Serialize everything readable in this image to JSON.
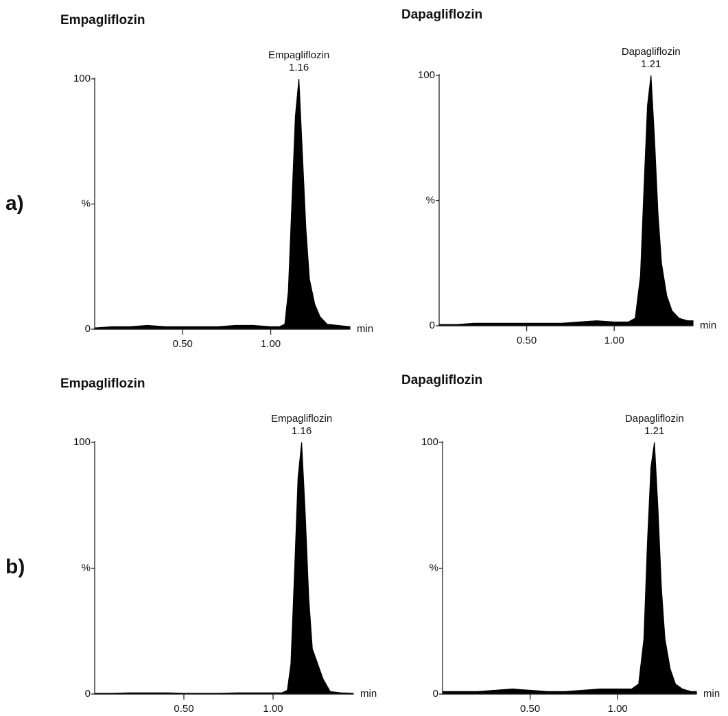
{
  "row_labels": [
    "a)",
    "b)"
  ],
  "chart_data": [
    {
      "type": "area",
      "title": "Empagliflozin",
      "x_label": "min",
      "color": "#000000",
      "peak": {
        "name": "Empagliflozin",
        "x": 1.16
      },
      "x": [
        0,
        0.1,
        0.2,
        0.3,
        0.4,
        0.5,
        0.6,
        0.7,
        0.8,
        0.9,
        1.0,
        1.05,
        1.08,
        1.1,
        1.12,
        1.14,
        1.16,
        1.18,
        1.2,
        1.22,
        1.25,
        1.28,
        1.32,
        1.38,
        1.45
      ],
      "values": [
        0.5,
        1,
        1,
        1.5,
        1,
        1,
        1,
        1,
        1.5,
        1.5,
        1,
        1,
        2,
        15,
        50,
        85,
        100,
        70,
        40,
        20,
        10,
        5,
        2,
        1.5,
        1
      ],
      "xlim": [
        0,
        1.45
      ],
      "ylim": [
        0,
        100
      ],
      "xticks": [
        {
          "value": 0.5,
          "label": "0.50"
        },
        {
          "value": 1.0,
          "label": "1.00"
        }
      ],
      "yticks": [
        0,
        {
          "value": 50,
          "label": "%"
        },
        100
      ]
    },
    {
      "type": "area",
      "title": "Dapagliflozin",
      "x_label": "min",
      "color": "#000000",
      "peak": {
        "name": "Dapagliflozin",
        "x": 1.21
      },
      "x": [
        0,
        0.1,
        0.2,
        0.3,
        0.4,
        0.5,
        0.6,
        0.7,
        0.8,
        0.9,
        1.0,
        1.08,
        1.12,
        1.15,
        1.17,
        1.19,
        1.21,
        1.23,
        1.25,
        1.27,
        1.3,
        1.33,
        1.37,
        1.42,
        1.45
      ],
      "values": [
        0.5,
        0.5,
        1,
        1,
        1,
        1,
        1,
        1,
        1.5,
        2,
        1.5,
        1.5,
        3,
        20,
        55,
        88,
        100,
        75,
        45,
        25,
        12,
        6,
        3,
        2,
        2
      ],
      "xlim": [
        0,
        1.45
      ],
      "ylim": [
        0,
        100
      ],
      "xticks": [
        {
          "value": 0.5,
          "label": "0.50"
        },
        {
          "value": 1.0,
          "label": "1.00"
        }
      ],
      "yticks": [
        0,
        {
          "value": 50,
          "label": "%"
        },
        100
      ]
    },
    {
      "type": "area",
      "title": "Empagliflozin",
      "x_label": "min",
      "color": "#000000",
      "peak": {
        "name": "Empagliflozin",
        "x": 1.16
      },
      "x": [
        0,
        0.1,
        0.2,
        0.3,
        0.4,
        0.5,
        0.6,
        0.7,
        0.8,
        0.9,
        1.0,
        1.05,
        1.08,
        1.1,
        1.12,
        1.14,
        1.16,
        1.18,
        1.2,
        1.22,
        1.25,
        1.28,
        1.32,
        1.38,
        1.45
      ],
      "values": [
        0.3,
        0.3,
        0.5,
        0.5,
        0.5,
        0.3,
        0.3,
        0.3,
        0.5,
        0.5,
        0.5,
        0.5,
        1.5,
        12,
        48,
        86,
        100,
        72,
        38,
        18,
        12,
        6,
        1,
        0.5,
        0.3
      ],
      "xlim": [
        0,
        1.45
      ],
      "ylim": [
        0,
        100
      ],
      "xticks": [
        {
          "value": 0.5,
          "label": "0.50"
        },
        {
          "value": 1.0,
          "label": "1.00"
        }
      ],
      "yticks": [
        0,
        {
          "value": 50,
          "label": "%"
        },
        100
      ]
    },
    {
      "type": "area",
      "title": "Dapagliflozin",
      "x_label": "min",
      "color": "#000000",
      "peak": {
        "name": "Dapagliflozin",
        "x": 1.21
      },
      "x": [
        0,
        0.1,
        0.2,
        0.3,
        0.4,
        0.5,
        0.6,
        0.7,
        0.8,
        0.9,
        1.0,
        1.08,
        1.12,
        1.15,
        1.17,
        1.19,
        1.21,
        1.23,
        1.25,
        1.27,
        1.3,
        1.33,
        1.37,
        1.42,
        1.45
      ],
      "values": [
        1,
        1,
        1,
        1.5,
        2,
        1.5,
        1,
        1,
        1.5,
        2,
        2,
        2,
        4,
        22,
        60,
        90,
        100,
        74,
        42,
        22,
        10,
        4,
        2,
        1,
        1
      ],
      "xlim": [
        0,
        1.45
      ],
      "ylim": [
        0,
        100
      ],
      "xticks": [
        {
          "value": 0.5,
          "label": "0.50"
        },
        {
          "value": 1.0,
          "label": "1.00"
        }
      ],
      "yticks": [
        0,
        {
          "value": 50,
          "label": "%"
        },
        100
      ]
    }
  ]
}
